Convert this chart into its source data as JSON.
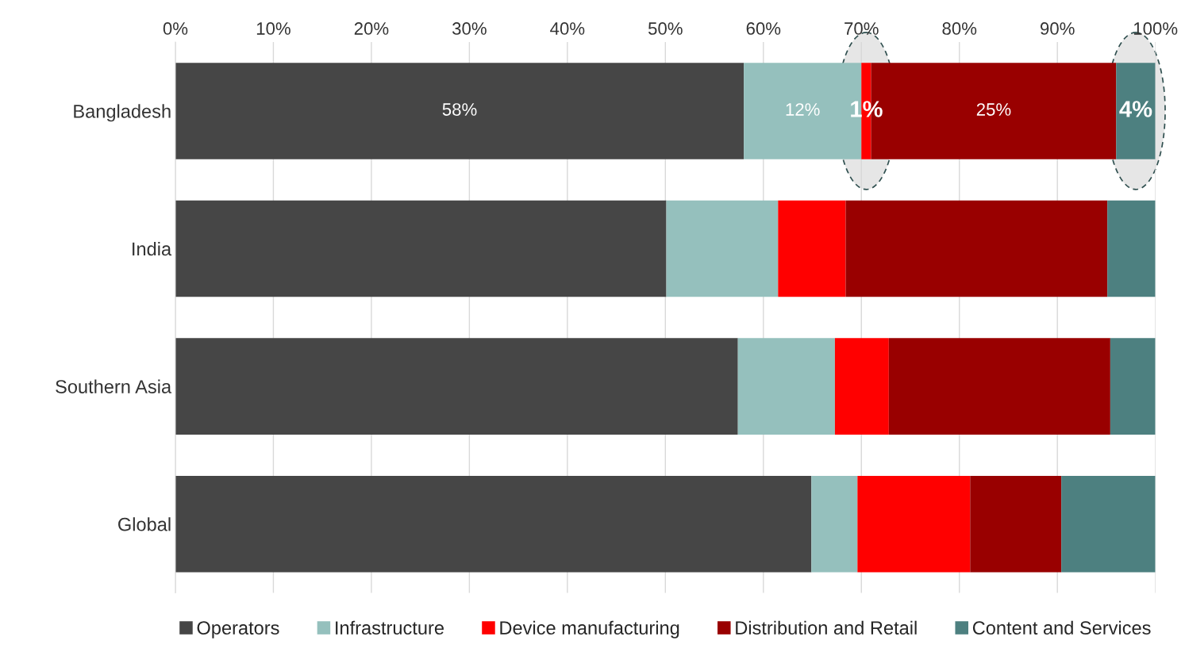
{
  "chart_data": {
    "type": "bar",
    "orientation": "horizontal",
    "stacked": true,
    "categories": [
      "Bangladesh",
      "India",
      "Southern Asia",
      "Global"
    ],
    "series": [
      {
        "name": "Operators",
        "color": "#464646",
        "values": [
          58,
          50.1,
          57.4,
          64.9
        ],
        "value_labels": [
          "58%",
          null,
          null,
          null
        ]
      },
      {
        "name": "Infrastructure",
        "color": "#95c0bd",
        "values": [
          12,
          11.4,
          9.9,
          4.7
        ],
        "value_labels": [
          "12%",
          null,
          null,
          null
        ]
      },
      {
        "name": "Device manufacturing",
        "color": "#ff0000",
        "values": [
          1,
          6.9,
          5.5,
          11.5
        ],
        "value_labels": [
          "1%",
          null,
          null,
          null
        ]
      },
      {
        "name": "Distribution and Retail",
        "color": "#990000",
        "values": [
          25,
          26.7,
          22.6,
          9.3
        ],
        "value_labels": [
          "25%",
          null,
          null,
          null
        ]
      },
      {
        "name": "Content and Services",
        "color": "#4d8080",
        "values": [
          4,
          4.9,
          4.6,
          9.6
        ],
        "value_labels": [
          "4%",
          null,
          null,
          null
        ]
      }
    ],
    "xlim": [
      0,
      100
    ],
    "xticks": [
      {
        "value": 0,
        "label": "0%"
      },
      {
        "value": 10,
        "label": "10%"
      },
      {
        "value": 20,
        "label": "20%"
      },
      {
        "value": 30,
        "label": "30%"
      },
      {
        "value": 40,
        "label": "40%"
      },
      {
        "value": 50,
        "label": "50%"
      },
      {
        "value": 60,
        "label": "60%"
      },
      {
        "value": 70,
        "label": "70%"
      },
      {
        "value": 80,
        "label": "80%"
      },
      {
        "value": 90,
        "label": "90%"
      },
      {
        "value": 100,
        "label": "100%"
      }
    ],
    "grid": "x",
    "legend": "bottom"
  }
}
